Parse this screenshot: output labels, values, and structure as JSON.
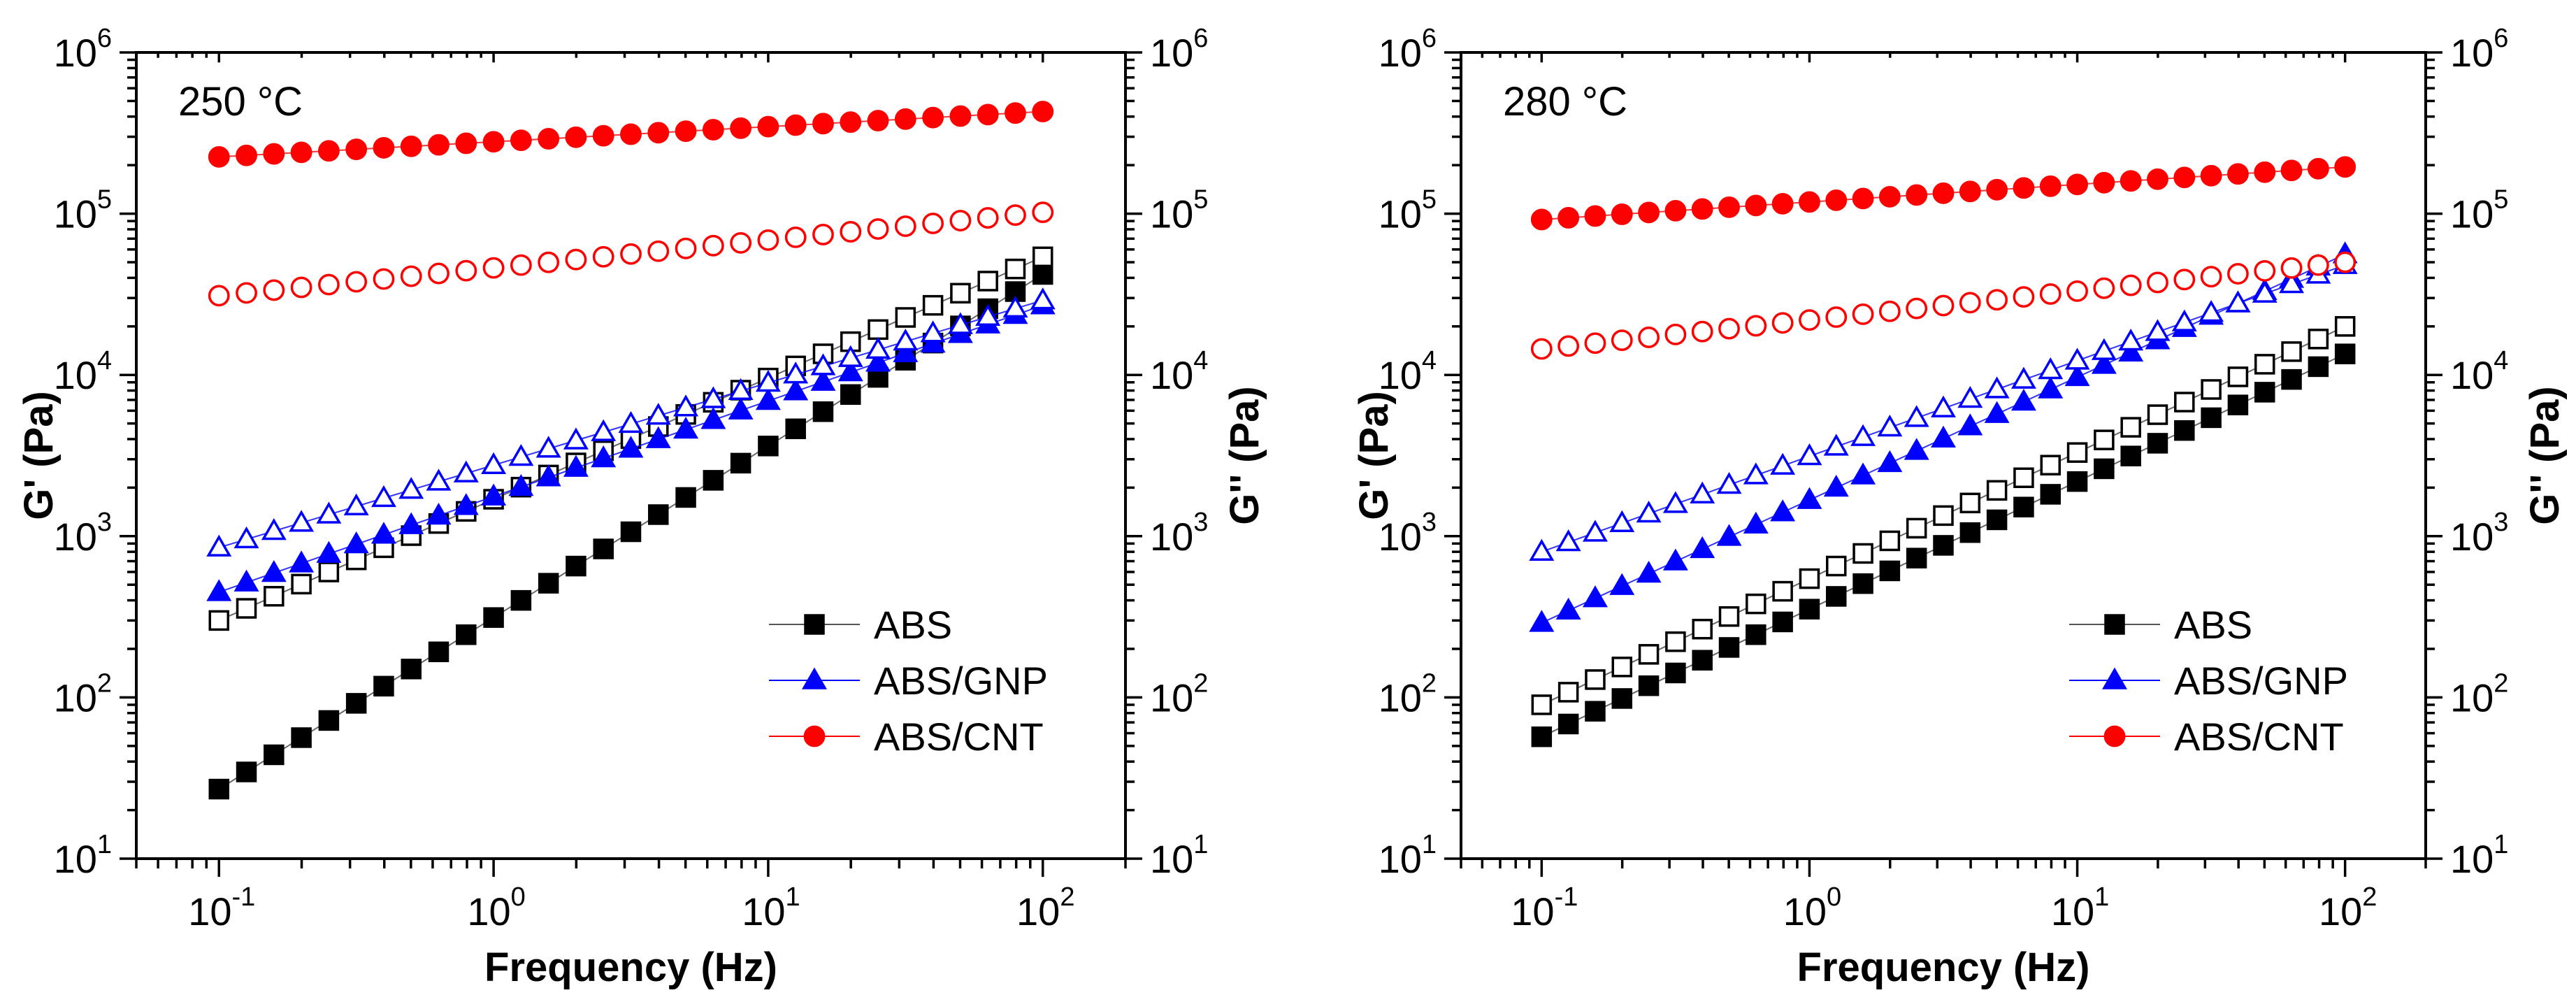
{
  "chart_data": [
    {
      "type": "scatter",
      "panel": "left",
      "annotation": "250 °C",
      "xlabel": "Frequency (Hz)",
      "ylabel_left": "G' (Pa)",
      "ylabel_right": "G'' (Pa)",
      "x_scale": "log",
      "y_scale": "log",
      "xlim": [
        0.05,
        200
      ],
      "ylim": [
        10,
        1000000
      ],
      "x_ticks": [
        {
          "base": "10",
          "exp": "-1"
        },
        {
          "base": "10",
          "exp": "0"
        },
        {
          "base": "10",
          "exp": "1"
        },
        {
          "base": "10",
          "exp": "2"
        }
      ],
      "y_ticks": [
        {
          "base": "10",
          "exp": "1"
        },
        {
          "base": "10",
          "exp": "2"
        },
        {
          "base": "10",
          "exp": "3"
        },
        {
          "base": "10",
          "exp": "4"
        },
        {
          "base": "10",
          "exp": "5"
        },
        {
          "base": "10",
          "exp": "6"
        }
      ],
      "legend": {
        "placement": "bottom-right",
        "entries": [
          "ABS",
          "ABS/GNP",
          "ABS/CNT"
        ]
      },
      "series": [
        {
          "name": "ABS",
          "modulus": "G'",
          "marker": "square",
          "filled": true,
          "color": "#000000",
          "connected": true,
          "y_start": 27,
          "y_end": 42000,
          "n": 31
        },
        {
          "name": "ABS",
          "modulus": "G''",
          "marker": "square",
          "filled": false,
          "color": "#000000",
          "connected": true,
          "y_start": 300,
          "y_end": 54000,
          "n": 31
        },
        {
          "name": "ABS/GNP",
          "modulus": "G'",
          "marker": "triangle",
          "filled": true,
          "color": "#0000ff",
          "connected": true,
          "y_start": 450,
          "y_end": 27000,
          "n": 31
        },
        {
          "name": "ABS/GNP",
          "modulus": "G''",
          "marker": "triangle",
          "filled": false,
          "color": "#0000ff",
          "connected": true,
          "y_start": 850,
          "y_end": 29000,
          "n": 31
        },
        {
          "name": "ABS/CNT",
          "modulus": "G'",
          "marker": "circle",
          "filled": true,
          "color": "#ff0000",
          "connected": true,
          "y_start": 225000,
          "y_end": 430000,
          "n": 31
        },
        {
          "name": "ABS/CNT",
          "modulus": "G''",
          "marker": "circle",
          "filled": false,
          "color": "#ff0000",
          "connected": false,
          "y_start": 31000,
          "y_end": 102000,
          "n": 31
        }
      ]
    },
    {
      "type": "scatter",
      "panel": "right",
      "annotation": "280 °C",
      "xlabel": "Frequency (Hz)",
      "ylabel_left": "G' (Pa)",
      "ylabel_right": "G'' (Pa)",
      "x_scale": "log",
      "y_scale": "log",
      "xlim": [
        0.05,
        200
      ],
      "ylim": [
        10,
        1000000
      ],
      "x_ticks": [
        {
          "base": "10",
          "exp": "-1"
        },
        {
          "base": "10",
          "exp": "0"
        },
        {
          "base": "10",
          "exp": "1"
        },
        {
          "base": "10",
          "exp": "2"
        }
      ],
      "y_ticks": [
        {
          "base": "10",
          "exp": "1"
        },
        {
          "base": "10",
          "exp": "2"
        },
        {
          "base": "10",
          "exp": "3"
        },
        {
          "base": "10",
          "exp": "4"
        },
        {
          "base": "10",
          "exp": "5"
        },
        {
          "base": "10",
          "exp": "6"
        }
      ],
      "legend": {
        "placement": "bottom-right",
        "entries": [
          "ABS",
          "ABS/GNP",
          "ABS/CNT"
        ]
      },
      "series": [
        {
          "name": "ABS",
          "modulus": "G'",
          "marker": "square",
          "filled": true,
          "color": "#000000",
          "connected": true,
          "y_start": 57,
          "y_end": 13500,
          "n": 31
        },
        {
          "name": "ABS",
          "modulus": "G''",
          "marker": "square",
          "filled": false,
          "color": "#000000",
          "connected": true,
          "y_start": 90,
          "y_end": 20000,
          "n": 31
        },
        {
          "name": "ABS/GNP",
          "modulus": "G'",
          "marker": "triangle",
          "filled": true,
          "color": "#0000ff",
          "connected": true,
          "y_start": 290,
          "y_end": 56000,
          "n": 31
        },
        {
          "name": "ABS/GNP",
          "modulus": "G''",
          "marker": "triangle",
          "filled": false,
          "color": "#0000ff",
          "connected": true,
          "y_start": 800,
          "y_end": 48000,
          "n": 31
        },
        {
          "name": "ABS/CNT",
          "modulus": "G'",
          "marker": "circle",
          "filled": true,
          "color": "#ff0000",
          "connected": true,
          "y_start": 92000,
          "y_end": 195000,
          "n": 31
        },
        {
          "name": "ABS/CNT",
          "modulus": "G''",
          "marker": "circle",
          "filled": false,
          "color": "#ff0000",
          "connected": false,
          "y_start": 14500,
          "y_end": 50000,
          "n": 31
        }
      ]
    }
  ]
}
